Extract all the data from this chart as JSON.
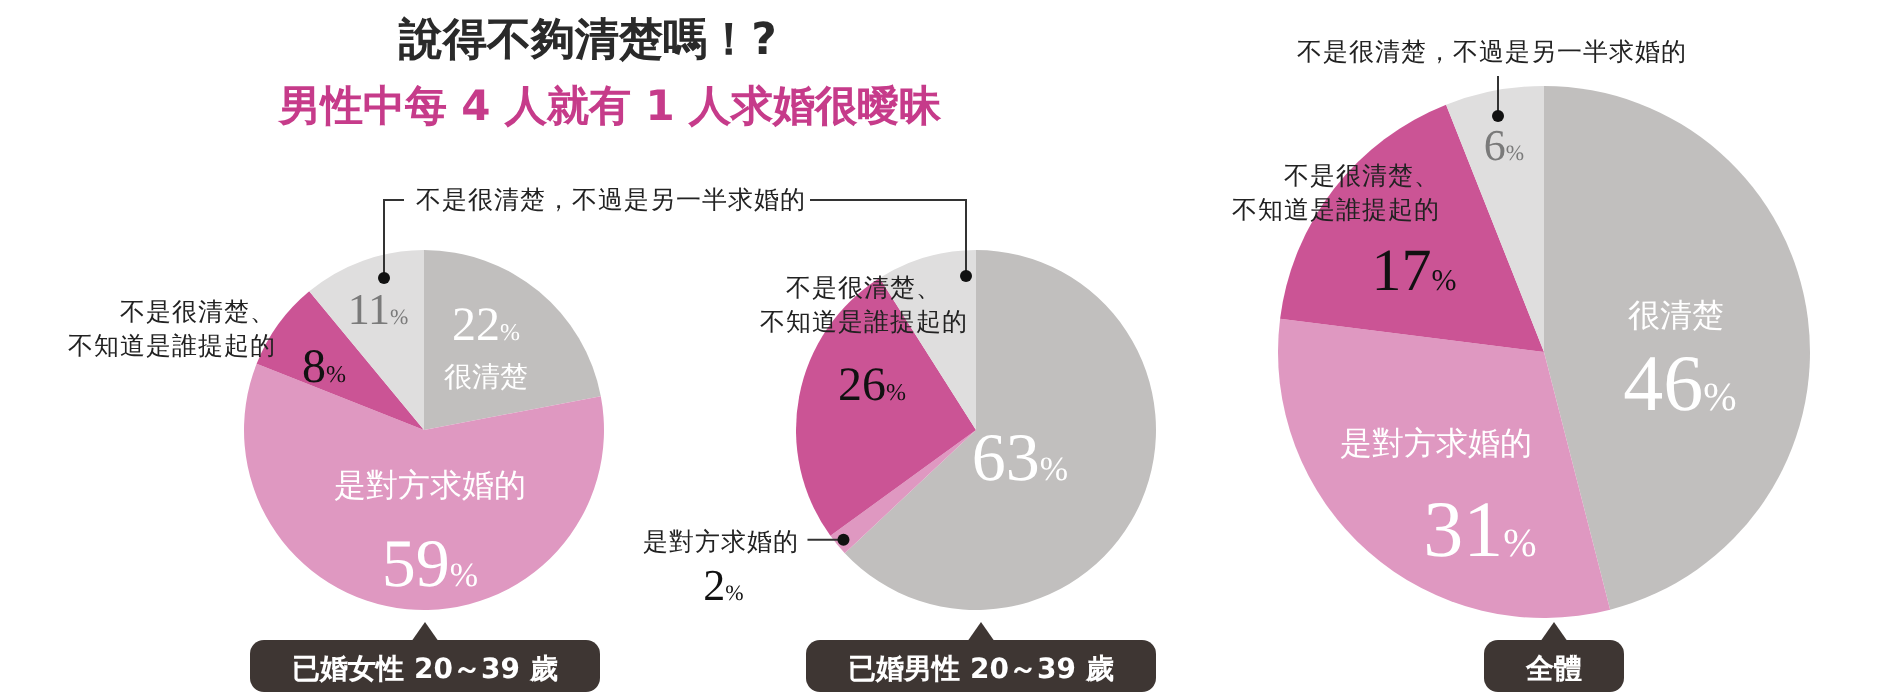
{
  "chart_data": [
    {
      "type": "pie",
      "title": "已婚女性 20～39 歲",
      "categories": [
        "很清楚",
        "是對方求婚的",
        "不是很清楚、不知道是誰提起的",
        "不是很清楚，不過是另一半求婚的"
      ],
      "values": [
        22,
        59,
        8,
        11
      ],
      "value_labels": [
        "22%",
        "59%",
        "8%",
        "11%"
      ],
      "colors": [
        "#c1bfbe",
        "#df98c1",
        "#cb5495",
        "#dfdede"
      ],
      "annotations": [
        "說得不夠清楚嗎！?",
        "男性中每 4 人就有 1 人求婚很曖昧"
      ]
    },
    {
      "type": "pie",
      "title": "已婚男性 20～39 歲",
      "categories": [
        null,
        "是對方求婚的",
        "不是很清楚、不知道是誰提起的",
        null
      ],
      "values": [
        63,
        2,
        26,
        9
      ],
      "value_labels": [
        "63%",
        "2%",
        "26%",
        null
      ],
      "colors": [
        "#c1bfbe",
        "#df98c1",
        "#cb5495",
        "#dfdede"
      ]
    },
    {
      "type": "pie",
      "title": "全體",
      "categories": [
        "很清楚",
        "是對方求婚的",
        "不是很清楚、不知道是誰提起的",
        "不是很清楚，不過是另一半求婚的"
      ],
      "values": [
        46,
        31,
        17,
        6
      ],
      "value_labels": [
        "46%",
        "31%",
        "17%",
        "6%"
      ],
      "colors": [
        "#c1bfbe",
        "#df98c1",
        "#cb5495",
        "#dfdede"
      ]
    }
  ]
}
